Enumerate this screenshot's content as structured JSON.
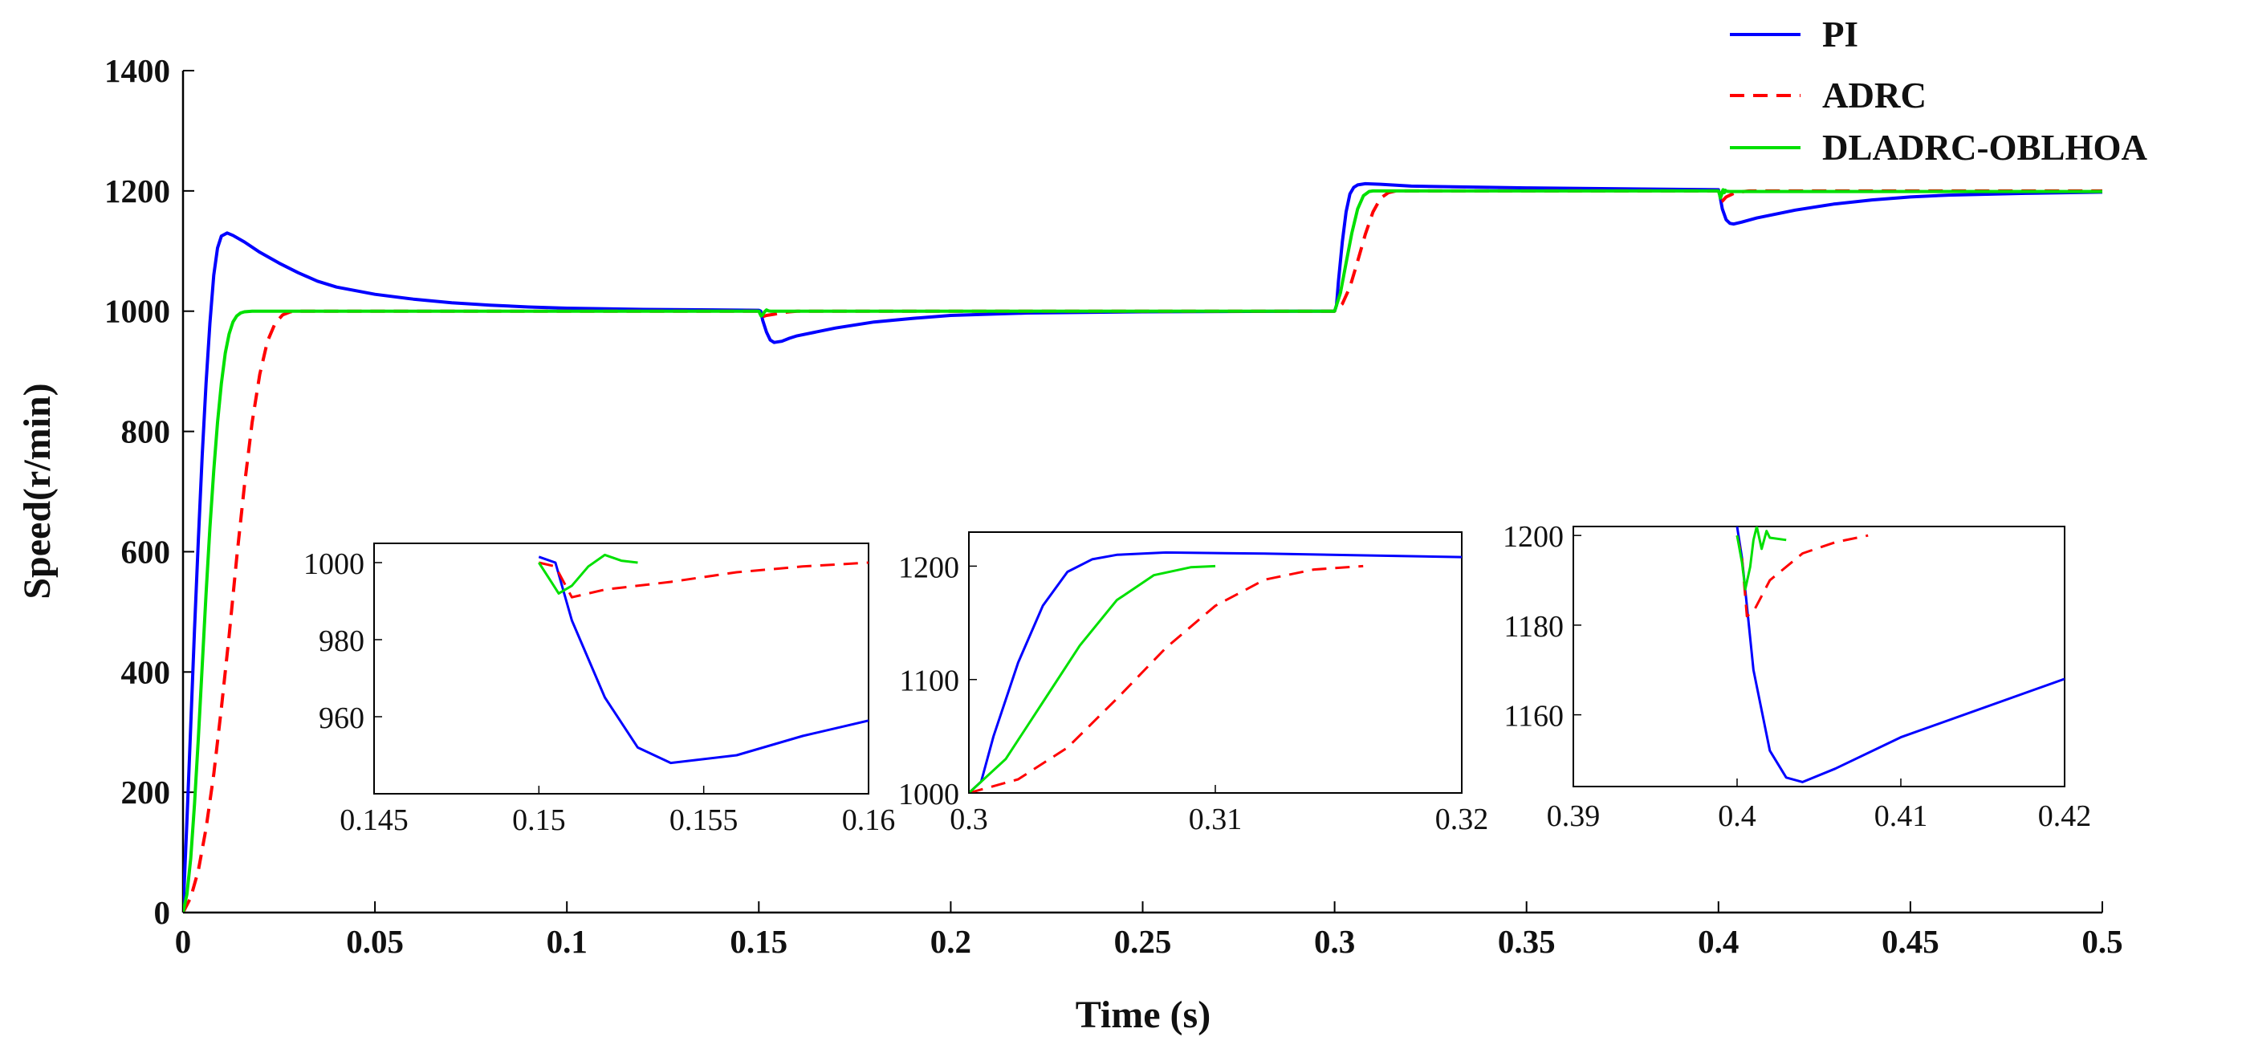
{
  "chart_data": {
    "type": "line",
    "xlabel": "Time (s)",
    "ylabel": "Speed(r/min)",
    "xlim": [
      0,
      0.5
    ],
    "ylim": [
      0,
      1400
    ],
    "xticks": [
      0,
      0.05,
      0.1,
      0.15,
      0.2,
      0.25,
      0.3,
      0.35,
      0.4,
      0.45,
      0.5
    ],
    "xtick_labels": [
      "0",
      "0.05",
      "0.1",
      "0.15",
      "0.2",
      "0.25",
      "0.3",
      "0.35",
      "0.4",
      "0.45",
      "0.5"
    ],
    "yticks": [
      0,
      200,
      400,
      600,
      800,
      1000,
      1200,
      1400
    ],
    "ytick_labels": [
      "0",
      "200",
      "400",
      "600",
      "800",
      "1000",
      "1200",
      "1400"
    ],
    "grid": false,
    "legend": {
      "position": "top-right",
      "entries": [
        "PI",
        "ADRC",
        "DLADRC-OBLHOA"
      ]
    },
    "series": [
      {
        "name": "PI",
        "color": "#0000ff",
        "dash": "solid",
        "points": [
          [
            0,
            0
          ],
          [
            0.001,
            150
          ],
          [
            0.002,
            310
          ],
          [
            0.003,
            470
          ],
          [
            0.004,
            620
          ],
          [
            0.005,
            760
          ],
          [
            0.006,
            880
          ],
          [
            0.007,
            980
          ],
          [
            0.008,
            1060
          ],
          [
            0.009,
            1105
          ],
          [
            0.01,
            1125
          ],
          [
            0.0115,
            1130
          ],
          [
            0.013,
            1126
          ],
          [
            0.016,
            1115
          ],
          [
            0.02,
            1098
          ],
          [
            0.025,
            1080
          ],
          [
            0.03,
            1064
          ],
          [
            0.035,
            1050
          ],
          [
            0.04,
            1040
          ],
          [
            0.05,
            1028
          ],
          [
            0.06,
            1020
          ],
          [
            0.07,
            1014
          ],
          [
            0.08,
            1010
          ],
          [
            0.09,
            1007
          ],
          [
            0.1,
            1005
          ],
          [
            0.12,
            1003
          ],
          [
            0.15,
            1001.5
          ],
          [
            0.1505,
            1000
          ],
          [
            0.151,
            985
          ],
          [
            0.152,
            965
          ],
          [
            0.153,
            952
          ],
          [
            0.154,
            948
          ],
          [
            0.156,
            950
          ],
          [
            0.158,
            955
          ],
          [
            0.16,
            959
          ],
          [
            0.17,
            972
          ],
          [
            0.18,
            982
          ],
          [
            0.19,
            988
          ],
          [
            0.2,
            993
          ],
          [
            0.22,
            997
          ],
          [
            0.25,
            999
          ],
          [
            0.29,
            1000
          ],
          [
            0.3,
            1000
          ],
          [
            0.3005,
            1010
          ],
          [
            0.301,
            1050
          ],
          [
            0.302,
            1115
          ],
          [
            0.303,
            1165
          ],
          [
            0.304,
            1195
          ],
          [
            0.305,
            1206
          ],
          [
            0.306,
            1210
          ],
          [
            0.308,
            1212
          ],
          [
            0.312,
            1211
          ],
          [
            0.32,
            1208
          ],
          [
            0.35,
            1205
          ],
          [
            0.4,
            1202
          ],
          [
            0.4003,
            1195
          ],
          [
            0.401,
            1170
          ],
          [
            0.402,
            1152
          ],
          [
            0.403,
            1146
          ],
          [
            0.404,
            1145
          ],
          [
            0.406,
            1148
          ],
          [
            0.41,
            1155
          ],
          [
            0.42,
            1168
          ],
          [
            0.43,
            1178
          ],
          [
            0.44,
            1185
          ],
          [
            0.45,
            1190
          ],
          [
            0.46,
            1193
          ],
          [
            0.48,
            1196
          ],
          [
            0.5,
            1198
          ]
        ]
      },
      {
        "name": "ADRC",
        "color": "#ff0000",
        "dash": "dashed",
        "points": [
          [
            0,
            0
          ],
          [
            0.002,
            25
          ],
          [
            0.004,
            70
          ],
          [
            0.006,
            140
          ],
          [
            0.008,
            230
          ],
          [
            0.01,
            340
          ],
          [
            0.012,
            460
          ],
          [
            0.014,
            590
          ],
          [
            0.016,
            710
          ],
          [
            0.018,
            815
          ],
          [
            0.02,
            895
          ],
          [
            0.022,
            950
          ],
          [
            0.024,
            980
          ],
          [
            0.026,
            994
          ],
          [
            0.028,
            999
          ],
          [
            0.03,
            1000
          ],
          [
            0.15,
            1000
          ],
          [
            0.1505,
            999
          ],
          [
            0.151,
            991
          ],
          [
            0.152,
            993
          ],
          [
            0.154,
            995
          ],
          [
            0.156,
            997.5
          ],
          [
            0.158,
            999
          ],
          [
            0.16,
            1000
          ],
          [
            0.3,
            1000
          ],
          [
            0.302,
            1012
          ],
          [
            0.304,
            1040
          ],
          [
            0.306,
            1083
          ],
          [
            0.308,
            1128
          ],
          [
            0.31,
            1165
          ],
          [
            0.312,
            1188
          ],
          [
            0.314,
            1197
          ],
          [
            0.316,
            1200
          ],
          [
            0.4,
            1200
          ],
          [
            0.4003,
            1195
          ],
          [
            0.4006,
            1182
          ],
          [
            0.401,
            1183
          ],
          [
            0.402,
            1190
          ],
          [
            0.404,
            1196
          ],
          [
            0.406,
            1198.5
          ],
          [
            0.408,
            1200
          ],
          [
            0.5,
            1200
          ]
        ]
      },
      {
        "name": "DLADRC-OBLHOA",
        "color": "#00e000",
        "dash": "solid",
        "points": [
          [
            0,
            0
          ],
          [
            0.001,
            30
          ],
          [
            0.002,
            90
          ],
          [
            0.003,
            180
          ],
          [
            0.004,
            290
          ],
          [
            0.005,
            410
          ],
          [
            0.006,
            530
          ],
          [
            0.007,
            640
          ],
          [
            0.008,
            735
          ],
          [
            0.009,
            815
          ],
          [
            0.01,
            880
          ],
          [
            0.011,
            930
          ],
          [
            0.012,
            962
          ],
          [
            0.013,
            982
          ],
          [
            0.014,
            992
          ],
          [
            0.015,
            997
          ],
          [
            0.016,
            999
          ],
          [
            0.018,
            1000
          ],
          [
            0.15,
            1000
          ],
          [
            0.1503,
            996
          ],
          [
            0.1506,
            992
          ],
          [
            0.151,
            994
          ],
          [
            0.1515,
            999
          ],
          [
            0.152,
            1002
          ],
          [
            0.1525,
            1000.5
          ],
          [
            0.153,
            1000
          ],
          [
            0.3,
            1000
          ],
          [
            0.3015,
            1030
          ],
          [
            0.303,
            1080
          ],
          [
            0.3045,
            1130
          ],
          [
            0.306,
            1170
          ],
          [
            0.3075,
            1192
          ],
          [
            0.309,
            1199
          ],
          [
            0.31,
            1200
          ],
          [
            0.4,
            1200
          ],
          [
            0.4003,
            1194
          ],
          [
            0.4005,
            1188
          ],
          [
            0.4008,
            1193
          ],
          [
            0.401,
            1199
          ],
          [
            0.4012,
            1202
          ],
          [
            0.4015,
            1197
          ],
          [
            0.4018,
            1201
          ],
          [
            0.402,
            1199.5
          ],
          [
            0.403,
            1199
          ],
          [
            0.5,
            1199
          ]
        ]
      }
    ],
    "insets": [
      {
        "xlim": [
          0.145,
          0.16
        ],
        "ylim": [
          940,
          1005
        ],
        "xticks": [
          0.145,
          0.15,
          0.155,
          0.16
        ],
        "xtick_labels": [
          "0.145",
          "0.15",
          "0.155",
          "0.16"
        ],
        "yticks": [
          960,
          980,
          1000
        ],
        "ytick_labels": [
          "960",
          "980",
          "1000"
        ]
      },
      {
        "xlim": [
          0.3,
          0.32
        ],
        "ylim": [
          1000,
          1230
        ],
        "xticks": [
          0.3,
          0.31,
          0.32
        ],
        "xtick_labels": [
          "0.3",
          "0.31",
          "0.32"
        ],
        "yticks": [
          1000,
          1100,
          1200
        ],
        "ytick_labels": [
          "1000",
          "1100",
          "1200"
        ]
      },
      {
        "xlim": [
          0.39,
          0.42
        ],
        "ylim": [
          1144,
          1202
        ],
        "xticks": [
          0.39,
          0.4,
          0.41,
          0.42
        ],
        "xtick_labels": [
          "0.39",
          "0.4",
          "0.41",
          "0.42"
        ],
        "yticks": [
          1160,
          1180,
          1200
        ],
        "ytick_labels": [
          "1160",
          "1180",
          "1200"
        ]
      }
    ]
  }
}
